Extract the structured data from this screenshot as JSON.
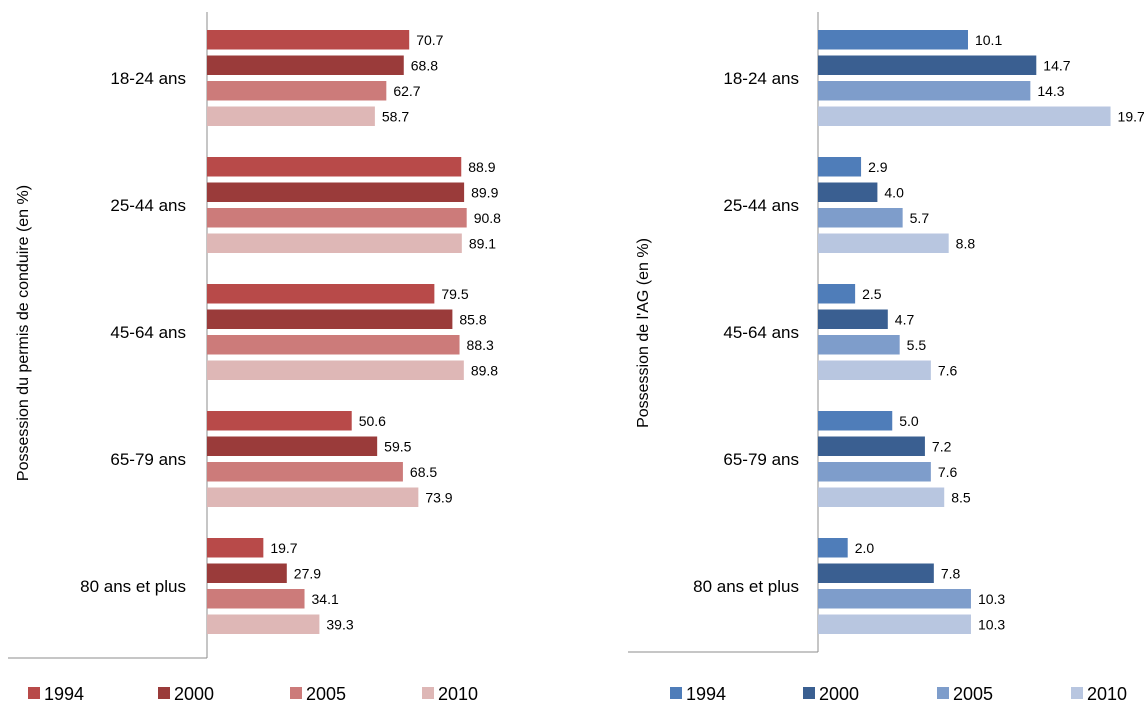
{
  "chart_data": [
    {
      "type": "bar",
      "orientation": "horizontal",
      "ylabel": "Possession du permis de conduire (en %)",
      "categories": [
        "18-24 ans",
        "25-44 ans",
        "45-64 ans",
        "65-79 ans",
        "80 ans et plus"
      ],
      "series": [
        {
          "name": "1994",
          "color": "#b84a49",
          "values": [
            70.7,
            88.9,
            79.5,
            50.6,
            19.7
          ]
        },
        {
          "name": "2000",
          "color": "#9a3b3a",
          "values": [
            68.8,
            89.9,
            85.8,
            59.5,
            27.9
          ]
        },
        {
          "name": "2005",
          "color": "#cc7b7a",
          "values": [
            62.7,
            90.8,
            88.3,
            68.5,
            34.1
          ]
        },
        {
          "name": "2010",
          "color": "#deb7b6",
          "values": [
            58.7,
            89.1,
            89.8,
            73.9,
            39.3
          ]
        }
      ],
      "legend_position": "bottom",
      "grid": false
    },
    {
      "type": "bar",
      "orientation": "horizontal",
      "ylabel": "Possession de l'AG (en %)",
      "categories": [
        "18-24 ans",
        "25-44 ans",
        "45-64 ans",
        "65-79 ans",
        "80 ans et plus"
      ],
      "series": [
        {
          "name": "1994",
          "color": "#4f7db9",
          "values": [
            10.1,
            2.9,
            2.5,
            5.0,
            2.0
          ]
        },
        {
          "name": "2000",
          "color": "#3a5f91",
          "values": [
            14.7,
            4.0,
            4.7,
            7.2,
            7.8
          ]
        },
        {
          "name": "2005",
          "color": "#7e9dcb",
          "values": [
            14.3,
            5.7,
            5.5,
            7.6,
            10.3
          ]
        },
        {
          "name": "2010",
          "color": "#b8c6e0",
          "values": [
            19.7,
            8.8,
            7.6,
            8.5,
            10.3
          ]
        }
      ],
      "legend_position": "bottom",
      "grid": false
    }
  ]
}
